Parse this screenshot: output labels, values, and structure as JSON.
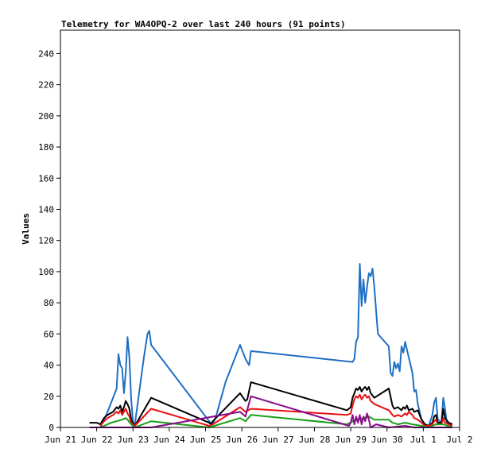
{
  "chart_data": {
    "type": "line",
    "title": "Telemetry for WA4OPQ-2 over last 240 hours (91 points)",
    "xlabel": "",
    "ylabel": "Values",
    "xlim": [
      "Jun 21",
      "Jul 2"
    ],
    "ylim": [
      0,
      255
    ],
    "grid": false,
    "legend": "none",
    "x_tick_labels": [
      "Jun 21",
      "Jun 22",
      "Jun 23",
      "Jun 24",
      "Jun 25",
      "Jun 26",
      "Jun 27",
      "Jun 28",
      "Jun 29",
      "Jun 30",
      "Jul 1",
      "Jul 2"
    ],
    "y_ticks": [
      0,
      20,
      40,
      60,
      80,
      100,
      120,
      140,
      160,
      180,
      200,
      220,
      240
    ],
    "series": [
      {
        "color": "#1f6fc4",
        "points": [
          [
            1.1,
            0
          ],
          [
            1.3,
            10
          ],
          [
            1.55,
            25
          ],
          [
            1.6,
            47
          ],
          [
            1.65,
            40
          ],
          [
            1.7,
            38
          ],
          [
            1.75,
            22
          ],
          [
            1.8,
            35
          ],
          [
            1.85,
            58
          ],
          [
            1.9,
            45
          ],
          [
            1.95,
            18
          ],
          [
            2.0,
            3
          ],
          [
            2.05,
            2
          ],
          [
            2.3,
            45
          ],
          [
            2.4,
            60
          ],
          [
            2.45,
            62
          ],
          [
            2.5,
            53
          ],
          [
            4.1,
            4
          ],
          [
            4.2,
            2
          ],
          [
            4.3,
            8
          ],
          [
            4.55,
            29
          ],
          [
            4.95,
            53
          ],
          [
            5.1,
            44
          ],
          [
            5.2,
            40
          ],
          [
            5.25,
            49
          ],
          [
            8.05,
            42
          ],
          [
            8.1,
            44
          ],
          [
            8.15,
            55
          ],
          [
            8.2,
            58
          ],
          [
            8.25,
            105
          ],
          [
            8.3,
            78
          ],
          [
            8.35,
            95
          ],
          [
            8.4,
            80
          ],
          [
            8.45,
            90
          ],
          [
            8.5,
            99
          ],
          [
            8.55,
            97
          ],
          [
            8.6,
            102
          ],
          [
            8.65,
            90
          ],
          [
            8.7,
            75
          ],
          [
            8.75,
            60
          ],
          [
            9.05,
            52
          ],
          [
            9.1,
            35
          ],
          [
            9.15,
            33
          ],
          [
            9.2,
            42
          ],
          [
            9.25,
            38
          ],
          [
            9.3,
            41
          ],
          [
            9.35,
            36
          ],
          [
            9.4,
            52
          ],
          [
            9.45,
            48
          ],
          [
            9.5,
            55
          ],
          [
            9.55,
            50
          ],
          [
            9.6,
            45
          ],
          [
            9.7,
            35
          ],
          [
            9.75,
            23
          ],
          [
            9.8,
            24
          ],
          [
            9.85,
            15
          ],
          [
            9.95,
            5
          ],
          [
            10.05,
            2
          ],
          [
            10.15,
            1
          ],
          [
            10.25,
            8
          ],
          [
            10.3,
            16
          ],
          [
            10.35,
            19
          ],
          [
            10.4,
            5
          ],
          [
            10.5,
            3
          ],
          [
            10.55,
            19
          ],
          [
            10.6,
            12
          ],
          [
            10.65,
            3
          ],
          [
            10.8,
            2
          ]
        ]
      },
      {
        "color": "#000000",
        "points": [
          [
            0.8,
            3
          ],
          [
            1.0,
            3
          ],
          [
            1.1,
            2
          ],
          [
            1.2,
            6
          ],
          [
            1.3,
            8
          ],
          [
            1.45,
            10
          ],
          [
            1.55,
            13
          ],
          [
            1.6,
            12
          ],
          [
            1.65,
            14
          ],
          [
            1.7,
            10
          ],
          [
            1.75,
            13
          ],
          [
            1.8,
            17
          ],
          [
            1.85,
            15
          ],
          [
            1.9,
            12
          ],
          [
            1.95,
            5
          ],
          [
            2.05,
            1
          ],
          [
            2.5,
            19
          ],
          [
            4.1,
            3
          ],
          [
            4.15,
            2
          ],
          [
            4.2,
            4
          ],
          [
            4.95,
            22
          ],
          [
            5.1,
            17
          ],
          [
            5.15,
            18
          ],
          [
            5.25,
            29
          ],
          [
            7.9,
            11
          ],
          [
            8.0,
            13
          ],
          [
            8.05,
            19
          ],
          [
            8.1,
            22
          ],
          [
            8.15,
            25
          ],
          [
            8.2,
            24
          ],
          [
            8.25,
            26
          ],
          [
            8.3,
            23
          ],
          [
            8.35,
            25
          ],
          [
            8.4,
            26
          ],
          [
            8.45,
            24
          ],
          [
            8.5,
            26
          ],
          [
            8.55,
            22
          ],
          [
            8.65,
            19
          ],
          [
            9.05,
            25
          ],
          [
            9.15,
            14
          ],
          [
            9.2,
            12
          ],
          [
            9.3,
            13
          ],
          [
            9.4,
            11
          ],
          [
            9.45,
            13
          ],
          [
            9.5,
            12
          ],
          [
            9.55,
            14
          ],
          [
            9.6,
            11
          ],
          [
            9.7,
            12
          ],
          [
            9.75,
            10
          ],
          [
            9.85,
            11
          ],
          [
            9.95,
            5
          ],
          [
            10.05,
            2
          ],
          [
            10.15,
            1
          ],
          [
            10.25,
            3
          ],
          [
            10.3,
            7
          ],
          [
            10.35,
            8
          ],
          [
            10.4,
            3
          ],
          [
            10.5,
            3
          ],
          [
            10.55,
            12
          ],
          [
            10.6,
            6
          ],
          [
            10.7,
            3
          ],
          [
            10.8,
            2
          ]
        ]
      },
      {
        "color": "#e81010",
        "points": [
          [
            1.1,
            1
          ],
          [
            1.2,
            4
          ],
          [
            1.3,
            6
          ],
          [
            1.45,
            8
          ],
          [
            1.55,
            10
          ],
          [
            1.6,
            9
          ],
          [
            1.65,
            11
          ],
          [
            1.7,
            8
          ],
          [
            1.75,
            10
          ],
          [
            1.8,
            12
          ],
          [
            1.85,
            9
          ],
          [
            1.9,
            7
          ],
          [
            1.95,
            3
          ],
          [
            2.05,
            1
          ],
          [
            2.5,
            12
          ],
          [
            4.1,
            1
          ],
          [
            4.2,
            2
          ],
          [
            4.95,
            13
          ],
          [
            5.1,
            10
          ],
          [
            5.25,
            12
          ],
          [
            7.9,
            8
          ],
          [
            8.0,
            9
          ],
          [
            8.05,
            14
          ],
          [
            8.1,
            18
          ],
          [
            8.15,
            20
          ],
          [
            8.2,
            19
          ],
          [
            8.25,
            21
          ],
          [
            8.3,
            18
          ],
          [
            8.35,
            20
          ],
          [
            8.4,
            21
          ],
          [
            8.45,
            19
          ],
          [
            8.5,
            20
          ],
          [
            8.55,
            17
          ],
          [
            8.65,
            15
          ],
          [
            9.05,
            11
          ],
          [
            9.15,
            8
          ],
          [
            9.2,
            7
          ],
          [
            9.3,
            8
          ],
          [
            9.4,
            7
          ],
          [
            9.5,
            9
          ],
          [
            9.55,
            8
          ],
          [
            9.6,
            10
          ],
          [
            9.7,
            8
          ],
          [
            9.75,
            6
          ],
          [
            9.85,
            5
          ],
          [
            9.95,
            3
          ],
          [
            10.05,
            1
          ],
          [
            10.15,
            1
          ],
          [
            10.25,
            2
          ],
          [
            10.3,
            4
          ],
          [
            10.35,
            5
          ],
          [
            10.4,
            2
          ],
          [
            10.5,
            2
          ],
          [
            10.55,
            6
          ],
          [
            10.6,
            3
          ],
          [
            10.7,
            2
          ],
          [
            10.8,
            1
          ]
        ]
      },
      {
        "color": "#18a018",
        "points": [
          [
            1.1,
            0
          ],
          [
            1.4,
            3
          ],
          [
            1.55,
            4
          ],
          [
            1.7,
            5
          ],
          [
            1.8,
            6
          ],
          [
            1.85,
            5
          ],
          [
            1.95,
            2
          ],
          [
            2.05,
            0
          ],
          [
            2.5,
            4
          ],
          [
            4.1,
            0
          ],
          [
            4.95,
            6
          ],
          [
            5.1,
            4
          ],
          [
            5.25,
            8
          ],
          [
            7.9,
            2
          ],
          [
            8.05,
            4
          ],
          [
            8.2,
            5
          ],
          [
            8.35,
            6
          ],
          [
            8.5,
            7
          ],
          [
            8.65,
            5
          ],
          [
            9.05,
            5
          ],
          [
            9.15,
            3
          ],
          [
            9.3,
            2
          ],
          [
            9.5,
            3
          ],
          [
            9.7,
            2
          ],
          [
            9.95,
            1
          ],
          [
            10.15,
            0
          ],
          [
            10.35,
            2
          ],
          [
            10.55,
            2
          ],
          [
            10.8,
            0
          ]
        ]
      },
      {
        "color": "#8a0a8a",
        "points": [
          [
            0.8,
            0
          ],
          [
            1.9,
            0
          ],
          [
            2.5,
            0
          ],
          [
            4.95,
            10
          ],
          [
            5.1,
            7
          ],
          [
            5.25,
            20
          ],
          [
            7.95,
            1
          ],
          [
            8.0,
            3
          ],
          [
            8.05,
            8
          ],
          [
            8.1,
            2
          ],
          [
            8.15,
            7
          ],
          [
            8.2,
            3
          ],
          [
            8.25,
            8
          ],
          [
            8.3,
            2
          ],
          [
            8.35,
            7
          ],
          [
            8.4,
            4
          ],
          [
            8.45,
            9
          ],
          [
            8.5,
            5
          ],
          [
            8.55,
            0
          ],
          [
            8.7,
            2
          ],
          [
            9.05,
            0
          ],
          [
            9.5,
            1
          ],
          [
            9.75,
            0
          ],
          [
            10.8,
            0
          ]
        ]
      }
    ]
  }
}
